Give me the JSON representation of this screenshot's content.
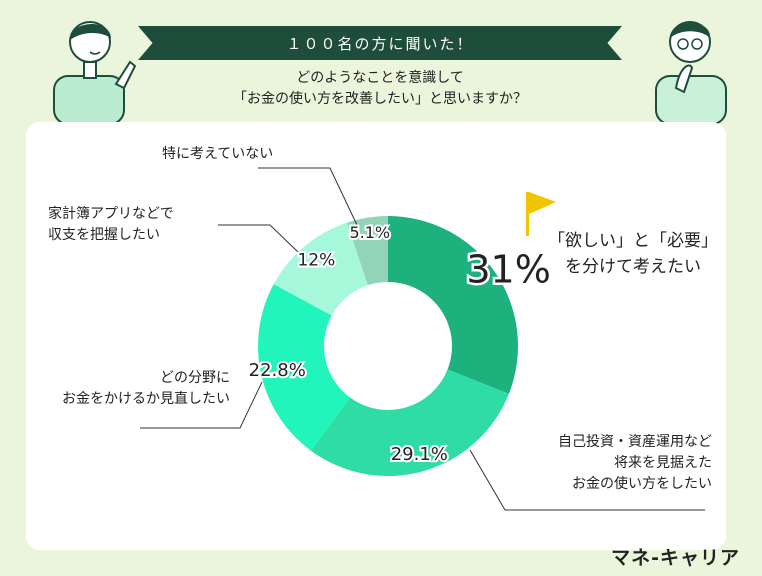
{
  "header": {
    "banner": "１００名の方に聞いた！",
    "question_line1": "どのようなことを意識して",
    "question_line2": "「お金の使い方を改善したい」と思いますか？"
  },
  "chart_data": {
    "type": "pie",
    "donut": true,
    "categories": [
      "「欲しい」と「必要」を分けて考えたい",
      "自己投資・資産運用など将来を見据えたお金の使い方をしたい",
      "どの分野にお金をかけるか見直したい",
      "家計簿アプリなどで収支を把握したい",
      "特に考えていない"
    ],
    "values": [
      31,
      29.1,
      22.8,
      12,
      5.1
    ],
    "value_labels": [
      "31%",
      "29.1%",
      "22.8%",
      "12%",
      "5.1%"
    ],
    "colors": [
      "#1db17e",
      "#2fdca6",
      "#22f5bb",
      "#a6f8da",
      "#92d4b8"
    ]
  },
  "labels": {
    "callout_line1": "「欲しい」と「必要」",
    "callout_line2": "を分けて考えたい",
    "invest_line1": "自己投資・資産運用など",
    "invest_line2": "将来を見据えた",
    "invest_line3": "お金の使い方をしたい",
    "review_line1": "どの分野に",
    "review_line2": "お金をかけるか見直したい",
    "app_line1": "家計簿アプリなどで",
    "app_line2": "収支を把握したい",
    "none_line1": "特に考えていない"
  },
  "brand": "マネ-キャリア",
  "icons": {
    "flag": "flag-icon",
    "person_left": "person-pointing-illustration",
    "person_right": "person-thinking-illustration"
  }
}
